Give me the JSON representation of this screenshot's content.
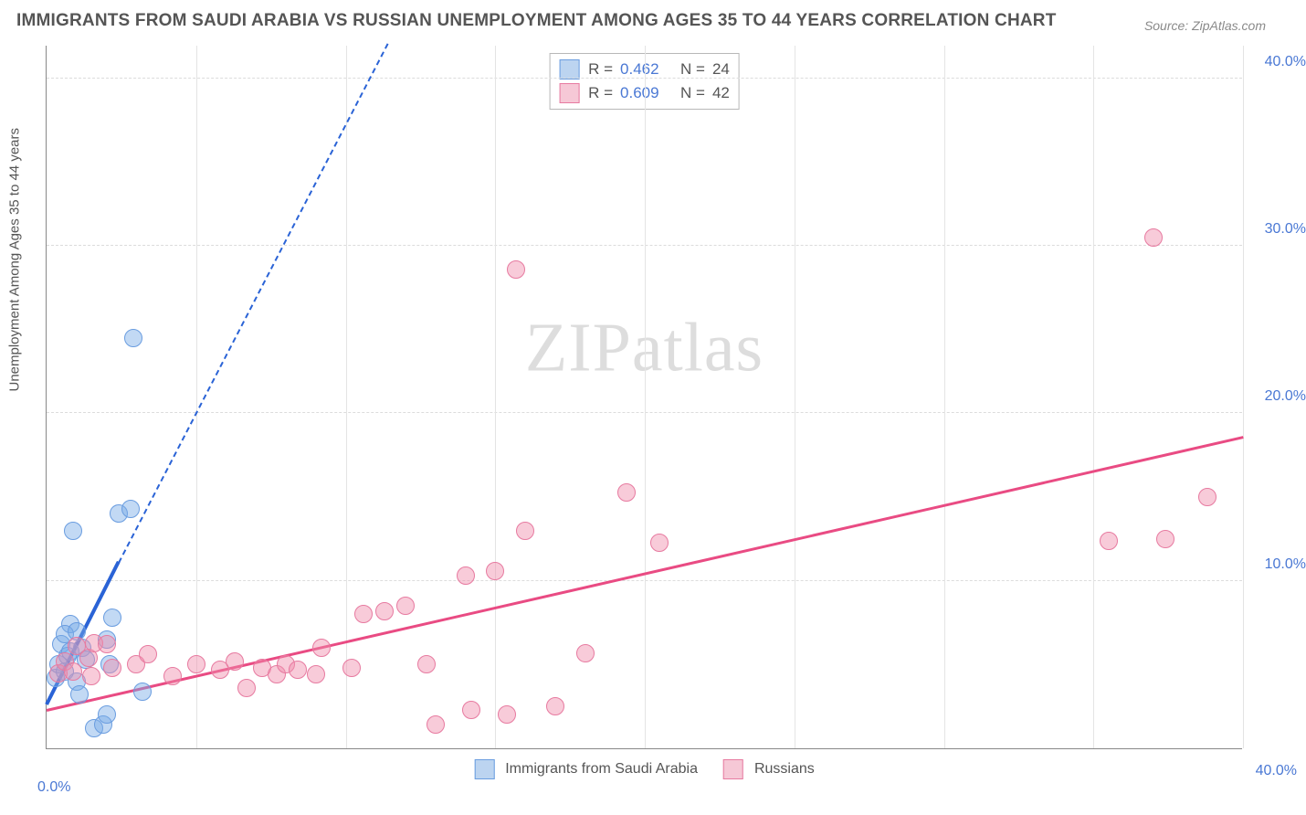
{
  "title": "IMMIGRANTS FROM SAUDI ARABIA VS RUSSIAN UNEMPLOYMENT AMONG AGES 35 TO 44 YEARS CORRELATION CHART",
  "source": "Source: ZipAtlas.com",
  "y_axis_label": "Unemployment Among Ages 35 to 44 years",
  "watermark_a": "ZIP",
  "watermark_b": "atlas",
  "chart": {
    "type": "scatter",
    "xlim": [
      0,
      40
    ],
    "ylim": [
      0,
      42
    ],
    "y_ticks": [
      10,
      20,
      30,
      40
    ],
    "y_tick_labels": [
      "10.0%",
      "20.0%",
      "30.0%",
      "40.0%"
    ],
    "x_ticks": [
      5,
      10,
      15,
      20,
      25,
      30,
      35,
      40
    ],
    "x_tick_label_low": "0.0%",
    "x_tick_label_high": "40.0%",
    "background_color": "#ffffff",
    "grid_color": "#dcdcdc",
    "axis_color": "#888888",
    "tick_label_color": "#4a78d4",
    "title_color": "#555555",
    "marker_radius": 10,
    "series": [
      {
        "name": "Immigrants from Saudi Arabia",
        "legend_label": "Immigrants from Saudi Arabia",
        "color_fill": "rgba(120,170,230,0.45)",
        "color_border": "#6a9de0",
        "swatch_fill": "#bcd4f0",
        "swatch_border": "#6a9de0",
        "r_value": "0.462",
        "n_value": "24",
        "trend": {
          "x1": 0,
          "y1": 2.5,
          "x2": 2.4,
          "y2": 11.0,
          "dash_x2": 11.4,
          "dash_y2": 42.0,
          "color": "#2a63d6",
          "width": 4
        },
        "points": [
          [
            0.3,
            4.2
          ],
          [
            0.4,
            5.0
          ],
          [
            0.5,
            6.2
          ],
          [
            0.6,
            4.6
          ],
          [
            0.7,
            5.5
          ],
          [
            0.8,
            5.8
          ],
          [
            0.8,
            7.4
          ],
          [
            1.0,
            4.0
          ],
          [
            1.1,
            3.2
          ],
          [
            1.2,
            6.0
          ],
          [
            1.3,
            5.3
          ],
          [
            1.6,
            1.2
          ],
          [
            1.9,
            1.4
          ],
          [
            2.0,
            2.0
          ],
          [
            2.1,
            5.0
          ],
          [
            2.0,
            6.5
          ],
          [
            2.2,
            7.8
          ],
          [
            2.4,
            14.0
          ],
          [
            2.8,
            14.3
          ],
          [
            3.2,
            3.4
          ],
          [
            0.9,
            13.0
          ],
          [
            2.9,
            24.5
          ],
          [
            0.6,
            6.8
          ],
          [
            1.0,
            7.0
          ]
        ]
      },
      {
        "name": "Russians",
        "legend_label": "Russians",
        "color_fill": "rgba(240,140,170,0.45)",
        "color_border": "#e77aa0",
        "swatch_fill": "#f6c8d6",
        "swatch_border": "#e77aa0",
        "r_value": "0.609",
        "n_value": "42",
        "trend": {
          "x1": 0,
          "y1": 2.2,
          "x2": 40,
          "y2": 18.5,
          "color": "#e94b83",
          "width": 3
        },
        "points": [
          [
            0.4,
            4.5
          ],
          [
            0.6,
            5.2
          ],
          [
            0.9,
            4.6
          ],
          [
            1.0,
            6.1
          ],
          [
            1.4,
            5.4
          ],
          [
            1.6,
            6.3
          ],
          [
            1.5,
            4.3
          ],
          [
            2.0,
            6.2
          ],
          [
            2.2,
            4.8
          ],
          [
            3.0,
            5.0
          ],
          [
            3.4,
            5.6
          ],
          [
            4.2,
            4.3
          ],
          [
            5.0,
            5.0
          ],
          [
            5.8,
            4.7
          ],
          [
            6.3,
            5.2
          ],
          [
            6.7,
            3.6
          ],
          [
            7.2,
            4.8
          ],
          [
            7.7,
            4.4
          ],
          [
            8.0,
            5.0
          ],
          [
            9.2,
            6.0
          ],
          [
            8.4,
            4.7
          ],
          [
            9.0,
            4.4
          ],
          [
            10.2,
            4.8
          ],
          [
            10.6,
            8.0
          ],
          [
            11.3,
            8.2
          ],
          [
            12.0,
            8.5
          ],
          [
            12.7,
            5.0
          ],
          [
            13.0,
            1.4
          ],
          [
            14.0,
            10.3
          ],
          [
            14.2,
            2.3
          ],
          [
            15.0,
            10.6
          ],
          [
            15.4,
            2.0
          ],
          [
            15.7,
            28.6
          ],
          [
            17.0,
            2.5
          ],
          [
            16.0,
            13.0
          ],
          [
            18.0,
            5.7
          ],
          [
            19.4,
            15.3
          ],
          [
            20.5,
            12.3
          ],
          [
            35.5,
            12.4
          ],
          [
            37.4,
            12.5
          ],
          [
            38.8,
            15.0
          ],
          [
            37.0,
            30.5
          ]
        ]
      }
    ]
  }
}
